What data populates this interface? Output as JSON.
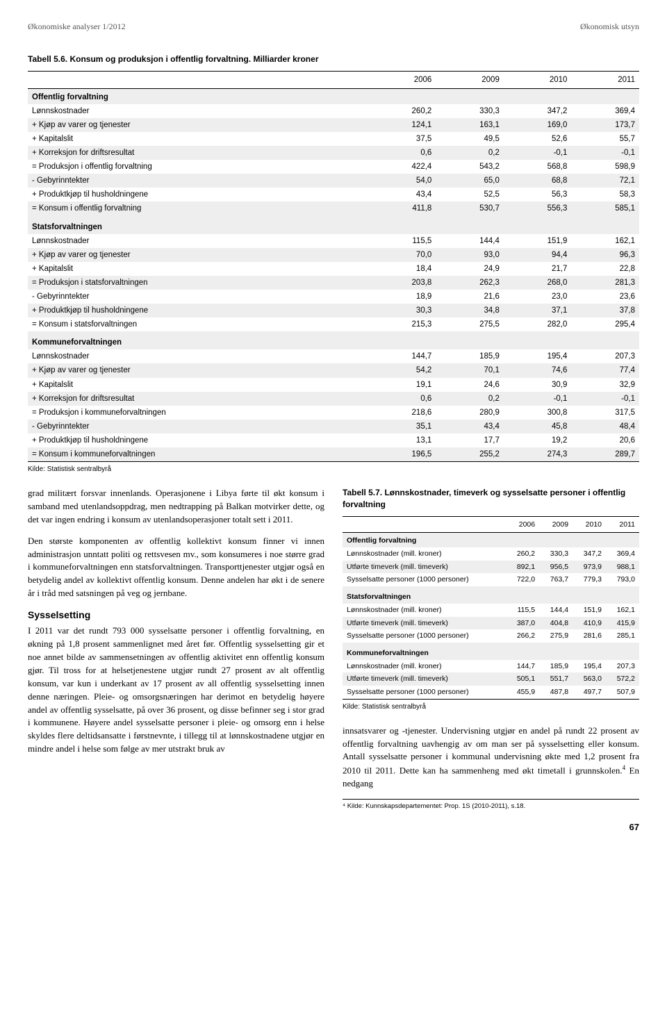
{
  "header": {
    "left": "Økonomiske analyser 1/2012",
    "right": "Økonomisk utsyn"
  },
  "table56": {
    "title": "Tabell 5.6. Konsum og produksjon i offentlig forvaltning. Milliarder kroner",
    "columns": [
      "",
      "2006",
      "2009",
      "2010",
      "2011"
    ],
    "sections": [
      {
        "head": "Offentlig forvaltning",
        "rows": [
          [
            "Lønnskostnader",
            "260,2",
            "330,3",
            "347,2",
            "369,4"
          ],
          [
            "+ Kjøp av varer og tjenester",
            "124,1",
            "163,1",
            "169,0",
            "173,7"
          ],
          [
            "+ Kapitalslit",
            "37,5",
            "49,5",
            "52,6",
            "55,7"
          ],
          [
            "+ Korreksjon for driftsresultat",
            "0,6",
            "0,2",
            "-0,1",
            "-0,1"
          ],
          [
            "= Produksjon i offentlig forvaltning",
            "422,4",
            "543,2",
            "568,8",
            "598,9"
          ],
          [
            "- Gebyrinntekter",
            "54,0",
            "65,0",
            "68,8",
            "72,1"
          ],
          [
            "+ Produktkjøp til husholdningene",
            "43,4",
            "52,5",
            "56,3",
            "58,3"
          ],
          [
            "= Konsum i offentlig forvaltning",
            "411,8",
            "530,7",
            "556,3",
            "585,1"
          ]
        ]
      },
      {
        "head": "Statsforvaltningen",
        "rows": [
          [
            "Lønnskostnader",
            "115,5",
            "144,4",
            "151,9",
            "162,1"
          ],
          [
            "+ Kjøp av varer og tjenester",
            "70,0",
            "93,0",
            "94,4",
            "96,3"
          ],
          [
            "+ Kapitalslit",
            "18,4",
            "24,9",
            "21,7",
            "22,8"
          ],
          [
            "= Produksjon i statsforvaltningen",
            "203,8",
            "262,3",
            "268,0",
            "281,3"
          ],
          [
            "- Gebyrinntekter",
            "18,9",
            "21,6",
            "23,0",
            "23,6"
          ],
          [
            "+ Produktkjøp til husholdningene",
            "30,3",
            "34,8",
            "37,1",
            "37,8"
          ],
          [
            "= Konsum i statsforvaltningen",
            "215,3",
            "275,5",
            "282,0",
            "295,4"
          ]
        ]
      },
      {
        "head": "Kommuneforvaltningen",
        "rows": [
          [
            "Lønnskostnader",
            "144,7",
            "185,9",
            "195,4",
            "207,3"
          ],
          [
            "+ Kjøp av varer og tjenester",
            "54,2",
            "70,1",
            "74,6",
            "77,4"
          ],
          [
            "+ Kapitalslit",
            "19,1",
            "24,6",
            "30,9",
            "32,9"
          ],
          [
            "+ Korreksjon for driftsresultat",
            "0,6",
            "0,2",
            "-0,1",
            "-0,1"
          ],
          [
            "= Produksjon i kommuneforvaltningen",
            "218,6",
            "280,9",
            "300,8",
            "317,5"
          ],
          [
            "- Gebyrinntekter",
            "35,1",
            "43,4",
            "45,8",
            "48,4"
          ],
          [
            "+ Produktkjøp til husholdningene",
            "13,1",
            "17,7",
            "19,2",
            "20,6"
          ],
          [
            "= Konsum i kommuneforvaltningen",
            "196,5",
            "255,2",
            "274,3",
            "289,7"
          ]
        ]
      }
    ],
    "source": "Kilde: Statistisk sentralbyrå"
  },
  "body": {
    "left": {
      "p1": "grad militært forsvar innenlands. Operasjonene i Libya førte til økt konsum i samband med utenlandsoppdrag, men nedtrapping på Balkan motvirker dette, og det var ingen endring i konsum av utenlandsoperasjoner totalt sett i 2011.",
      "p2": "Den største komponenten av offentlig kollektivt konsum finner vi innen administrasjon unntatt politi og rettsvesen mv., som konsumeres i noe større grad i kommuneforvaltningen enn statsforvaltningen. Transporttjenester utgjør også en betydelig andel av kollektivt offentlig konsum. Denne andelen har økt i de senere år i tråd med satsningen på veg og jernbane.",
      "h": "Sysselsetting",
      "p3a": "I 2011 var det rundt 793 000 sysselsatte personer i offentlig forvaltning, en økning på 1,8 prosent sammenlignet med året før. Offentlig sysselsetting gir et noe annet bilde av sammensetningen av offentlig aktivitet enn offentlig konsum gjør. Til tross for at helsetjenestene utgjør rundt 27 prosent av alt offentlig konsum, var kun i underkant av 17 prosent av all offentlig sysselsetting innen denne næringen. Pleie- og omsorgsnæringen har derimot en betydelig høyere andel av offentlig sysselsatte, på over 36 prosent, og disse befinner seg i stor grad i kommunene. Høyere andel sysselsatte personer i pleie- og omsorg enn i helse skyldes flere deltidsansatte i førstnevnte, i tillegg til at lønnskostnadene utgjør en mindre andel i helse som følge av mer utstrakt bruk av"
    },
    "right": {
      "p1a": "innsatsvarer og -tjenester. Undervisning utgjør en andel på rundt 22 prosent av offentlig forvaltning uavhengig av om man ser på sysselsetting eller konsum. Antall sysselsatte personer i kommunal undervisning økte med 1,2 prosent fra 2010 til 2011. Dette kan ha sammenheng med økt timetall i grunnskolen.",
      "p1sup": "4",
      "p1b": " En nedgang",
      "footnote": "⁴ Kilde: Kunnskapsdepartementet: Prop. 1S (2010-2011), s.18."
    }
  },
  "table57": {
    "title": "Tabell 5.7. Lønnskostnader, timeverk og sysselsatte personer i offentlig forvaltning",
    "columns": [
      "",
      "2006",
      "2009",
      "2010",
      "2011"
    ],
    "sections": [
      {
        "head": "Offentlig forvaltning",
        "rows": [
          [
            "Lønnskostnader (mill. kroner)",
            "260,2",
            "330,3",
            "347,2",
            "369,4"
          ],
          [
            "Utførte timeverk (mill. timeverk)",
            "892,1",
            "956,5",
            "973,9",
            "988,1"
          ],
          [
            "Sysselsatte personer (1000 personer)",
            "722,0",
            "763,7",
            "779,3",
            "793,0"
          ]
        ]
      },
      {
        "head": "Statsforvaltningen",
        "rows": [
          [
            "Lønnskostnader (mill. kroner)",
            "115,5",
            "144,4",
            "151,9",
            "162,1"
          ],
          [
            "Utførte timeverk (mill. timeverk)",
            "387,0",
            "404,8",
            "410,9",
            "415,9"
          ],
          [
            "Sysselsatte personer (1000 personer)",
            "266,2",
            "275,9",
            "281,6",
            "285,1"
          ]
        ]
      },
      {
        "head": "Kommuneforvaltningen",
        "rows": [
          [
            "Lønnskostnader (mill. kroner)",
            "144,7",
            "185,9",
            "195,4",
            "207,3"
          ],
          [
            "Utførte timeverk (mill. timeverk)",
            "505,1",
            "551,7",
            "563,0",
            "572,2"
          ],
          [
            "Sysselsatte personer (1000 personer)",
            "455,9",
            "487,8",
            "497,7",
            "507,9"
          ]
        ]
      }
    ],
    "source": "Kilde: Statistisk sentralbyrå"
  },
  "pagenum": "67"
}
